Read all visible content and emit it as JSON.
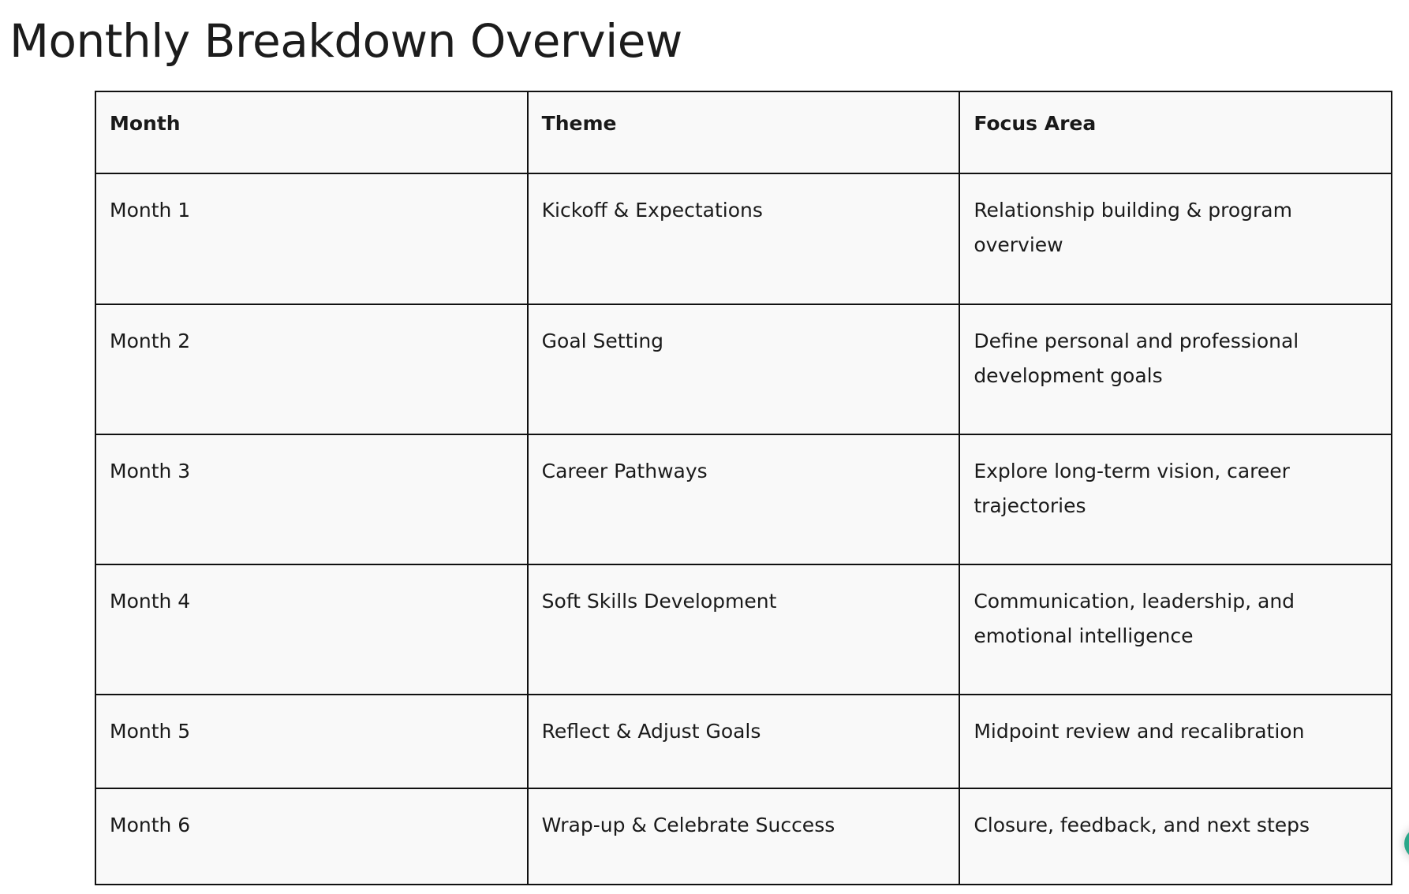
{
  "title": "Monthly Breakdown Overview",
  "table": {
    "headers": [
      "Month",
      "Theme",
      "Focus Area"
    ],
    "rows": [
      [
        "Month 1",
        "Kickoff & Expectations",
        "Relationship building & program overview"
      ],
      [
        "Month 2",
        "Goal Setting",
        "Define personal and professional development goals"
      ],
      [
        "Month 3",
        "Career Pathways",
        "Explore long-term vision, career trajectories"
      ],
      [
        "Month 4",
        "Soft Skills Development",
        "Communication, leadership, and emotional intelligence"
      ],
      [
        "Month 5",
        "Reflect & Adjust Goals",
        "Midpoint review and recalibration"
      ],
      [
        "Month 6",
        "Wrap-up & Celebrate Success",
        "Closure, feedback, and next steps"
      ]
    ]
  }
}
